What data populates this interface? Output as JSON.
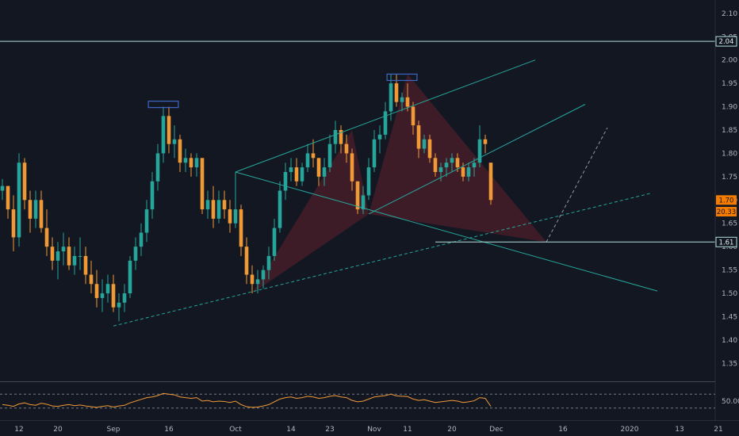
{
  "chart_data": {
    "type": "candlestick",
    "colors": {
      "background": "#131722",
      "up": "#26a69a",
      "down": "#f09a37",
      "pattern_fill": "#5c1f2b",
      "channel_line": "#26a69a",
      "dashed_line": "#26a69a",
      "projection_line": "#9598a1",
      "price_badge": "#f57c00",
      "level_line": "#b2dfdb",
      "box_outline": "#3f66c4",
      "rsi_line": "#f09a37",
      "axis_text": "#b2b5be"
    },
    "price_axis": {
      "ylim": [
        1.32,
        2.115
      ],
      "ticks": [
        "2.10",
        "2.05",
        "2.00",
        "1.95",
        "1.90",
        "1.85",
        "1.80",
        "1.75",
        "1.70",
        "1.65",
        "1.60",
        "1.55",
        "1.50",
        "1.45",
        "1.40",
        "1.35"
      ]
    },
    "time_axis": {
      "labels": [
        {
          "text": "12",
          "bar": 3
        },
        {
          "text": "20",
          "bar": 10
        },
        {
          "text": "Sep",
          "bar": 20
        },
        {
          "text": "16",
          "bar": 30
        },
        {
          "text": "Oct",
          "bar": 42
        },
        {
          "text": "14",
          "bar": 52
        },
        {
          "text": "23",
          "bar": 59
        },
        {
          "text": "Nov",
          "bar": 67
        },
        {
          "text": "11",
          "bar": 73
        },
        {
          "text": "20",
          "bar": 81
        },
        {
          "text": "Dec",
          "bar": 89
        },
        {
          "text": "16",
          "bar": 101
        },
        {
          "text": "2020",
          "bar": 113
        },
        {
          "text": "13",
          "bar": 122
        },
        {
          "text": "21",
          "bar": 129
        }
      ]
    },
    "candles": [
      [
        1.72,
        1.745,
        1.7,
        1.73
      ],
      [
        1.73,
        1.73,
        1.66,
        1.68
      ],
      [
        1.68,
        1.71,
        1.59,
        1.62
      ],
      [
        1.62,
        1.8,
        1.6,
        1.78
      ],
      [
        1.78,
        1.79,
        1.68,
        1.7
      ],
      [
        1.7,
        1.72,
        1.63,
        1.66
      ],
      [
        1.66,
        1.72,
        1.64,
        1.7
      ],
      [
        1.7,
        1.72,
        1.63,
        1.64
      ],
      [
        1.64,
        1.68,
        1.58,
        1.6
      ],
      [
        1.6,
        1.62,
        1.55,
        1.57
      ],
      [
        1.57,
        1.61,
        1.53,
        1.59
      ],
      [
        1.59,
        1.63,
        1.56,
        1.6
      ],
      [
        1.6,
        1.62,
        1.55,
        1.56
      ],
      [
        1.56,
        1.6,
        1.54,
        1.58
      ],
      [
        1.58,
        1.62,
        1.55,
        1.58
      ],
      [
        1.58,
        1.6,
        1.52,
        1.54
      ],
      [
        1.54,
        1.57,
        1.5,
        1.52
      ],
      [
        1.52,
        1.55,
        1.47,
        1.49
      ],
      [
        1.49,
        1.53,
        1.46,
        1.5
      ],
      [
        1.5,
        1.54,
        1.48,
        1.52
      ],
      [
        1.52,
        1.54,
        1.46,
        1.47
      ],
      [
        1.47,
        1.5,
        1.44,
        1.48
      ],
      [
        1.48,
        1.52,
        1.46,
        1.5
      ],
      [
        1.5,
        1.58,
        1.49,
        1.57
      ],
      [
        1.57,
        1.62,
        1.55,
        1.6
      ],
      [
        1.6,
        1.65,
        1.58,
        1.63
      ],
      [
        1.63,
        1.7,
        1.61,
        1.68
      ],
      [
        1.68,
        1.76,
        1.66,
        1.74
      ],
      [
        1.74,
        1.82,
        1.72,
        1.8
      ],
      [
        1.8,
        1.9,
        1.78,
        1.88
      ],
      [
        1.88,
        1.9,
        1.8,
        1.82
      ],
      [
        1.82,
        1.86,
        1.79,
        1.83
      ],
      [
        1.83,
        1.84,
        1.76,
        1.78
      ],
      [
        1.78,
        1.81,
        1.76,
        1.79
      ],
      [
        1.79,
        1.8,
        1.75,
        1.77
      ],
      [
        1.77,
        1.8,
        1.75,
        1.79
      ],
      [
        1.79,
        1.79,
        1.67,
        1.68
      ],
      [
        1.68,
        1.72,
        1.66,
        1.7
      ],
      [
        1.7,
        1.73,
        1.64,
        1.66
      ],
      [
        1.66,
        1.72,
        1.65,
        1.7
      ],
      [
        1.7,
        1.72,
        1.66,
        1.68
      ],
      [
        1.68,
        1.7,
        1.63,
        1.65
      ],
      [
        1.65,
        1.76,
        1.64,
        1.68
      ],
      [
        1.68,
        1.69,
        1.58,
        1.6
      ],
      [
        1.6,
        1.62,
        1.52,
        1.54
      ],
      [
        1.54,
        1.56,
        1.5,
        1.52
      ],
      [
        1.52,
        1.55,
        1.5,
        1.53
      ],
      [
        1.53,
        1.56,
        1.51,
        1.55
      ],
      [
        1.55,
        1.6,
        1.53,
        1.58
      ],
      [
        1.58,
        1.66,
        1.57,
        1.64
      ],
      [
        1.64,
        1.74,
        1.63,
        1.72
      ],
      [
        1.72,
        1.78,
        1.7,
        1.76
      ],
      [
        1.76,
        1.79,
        1.74,
        1.77
      ],
      [
        1.77,
        1.79,
        1.73,
        1.74
      ],
      [
        1.74,
        1.78,
        1.73,
        1.77
      ],
      [
        1.77,
        1.82,
        1.76,
        1.8
      ],
      [
        1.8,
        1.83,
        1.77,
        1.79
      ],
      [
        1.79,
        1.79,
        1.73,
        1.75
      ],
      [
        1.75,
        1.79,
        1.73,
        1.77
      ],
      [
        1.77,
        1.84,
        1.76,
        1.82
      ],
      [
        1.82,
        1.87,
        1.8,
        1.85
      ],
      [
        1.85,
        1.86,
        1.8,
        1.82
      ],
      [
        1.82,
        1.84,
        1.78,
        1.8
      ],
      [
        1.8,
        1.81,
        1.72,
        1.74
      ],
      [
        1.74,
        1.74,
        1.67,
        1.68
      ],
      [
        1.68,
        1.73,
        1.67,
        1.71
      ],
      [
        1.71,
        1.79,
        1.7,
        1.77
      ],
      [
        1.77,
        1.85,
        1.76,
        1.83
      ],
      [
        1.83,
        1.86,
        1.8,
        1.84
      ],
      [
        1.84,
        1.91,
        1.83,
        1.89
      ],
      [
        1.89,
        1.97,
        1.87,
        1.95
      ],
      [
        1.95,
        1.97,
        1.9,
        1.91
      ],
      [
        1.91,
        1.93,
        1.89,
        1.92
      ],
      [
        1.92,
        1.95,
        1.89,
        1.9
      ],
      [
        1.9,
        1.91,
        1.84,
        1.86
      ],
      [
        1.86,
        1.87,
        1.79,
        1.81
      ],
      [
        1.81,
        1.84,
        1.8,
        1.83
      ],
      [
        1.83,
        1.84,
        1.78,
        1.79
      ],
      [
        1.79,
        1.8,
        1.75,
        1.76
      ],
      [
        1.76,
        1.78,
        1.74,
        1.77
      ],
      [
        1.77,
        1.79,
        1.75,
        1.78
      ],
      [
        1.78,
        1.8,
        1.76,
        1.79
      ],
      [
        1.79,
        1.8,
        1.76,
        1.77
      ],
      [
        1.77,
        1.78,
        1.74,
        1.75
      ],
      [
        1.75,
        1.78,
        1.74,
        1.77
      ],
      [
        1.77,
        1.79,
        1.75,
        1.78
      ],
      [
        1.78,
        1.86,
        1.77,
        1.83
      ],
      [
        1.83,
        1.84,
        1.8,
        1.82
      ],
      [
        1.78,
        1.78,
        1.69,
        1.7
      ]
    ],
    "rsi": {
      "label": "50.00",
      "upper": 70,
      "lower": 30,
      "values": [
        40,
        38,
        35,
        42,
        45,
        40,
        38,
        44,
        41,
        36,
        35,
        38,
        40,
        37,
        39,
        36,
        34,
        32,
        35,
        37,
        33,
        36,
        38,
        45,
        50,
        55,
        60,
        62,
        66,
        72,
        70,
        68,
        62,
        60,
        58,
        60,
        50,
        52,
        48,
        50,
        49,
        46,
        50,
        40,
        34,
        32,
        33,
        36,
        40,
        48,
        56,
        60,
        62,
        58,
        60,
        64,
        62,
        58,
        60,
        64,
        66,
        62,
        60,
        52,
        48,
        50,
        56,
        62,
        64,
        66,
        70,
        65,
        64,
        63,
        56,
        52,
        54,
        50,
        46,
        48,
        50,
        52,
        50,
        46,
        48,
        51,
        60,
        58,
        35
      ]
    },
    "horizontal_levels": [
      {
        "label": "2.04",
        "price": 2.04
      },
      {
        "label": "1.61",
        "price": 1.61,
        "from_bar": 78
      }
    ],
    "price_badges": [
      {
        "label": "1.70",
        "price": 1.7
      },
      {
        "label": "20.33",
        "price": 1.675
      }
    ],
    "channel_lines": [
      {
        "from": [
          42,
          1.76
        ],
        "to": [
          96,
          2.0
        ]
      },
      {
        "from": [
          66,
          1.67
        ],
        "to": [
          105,
          1.905
        ]
      },
      {
        "from": [
          42,
          1.76
        ],
        "to": [
          118,
          1.505
        ]
      }
    ],
    "dashed_lines": [
      {
        "from": [
          20,
          1.43
        ],
        "to": [
          117,
          1.715
        ]
      },
      {
        "from": [
          98,
          1.61
        ],
        "to": [
          109,
          1.855
        ]
      }
    ],
    "pattern_points": [
      [
        45,
        1.5
      ],
      [
        63,
        1.85
      ],
      [
        66,
        1.67
      ],
      [
        73,
        1.97
      ],
      [
        98,
        1.61
      ]
    ],
    "top_boxes": [
      {
        "center_bar": 29,
        "price": 1.905,
        "half_width_bars": 2.7
      },
      {
        "center_bar": 72,
        "price": 1.963,
        "half_width_bars": 2.7
      }
    ]
  }
}
